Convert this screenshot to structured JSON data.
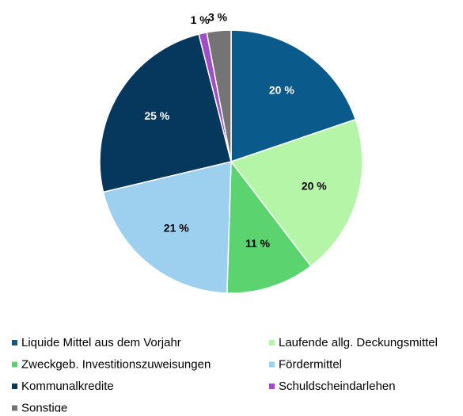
{
  "chart_data": {
    "type": "pie",
    "categories": [
      "Liquide Mittel aus dem Vorjahr",
      "Laufende allg. Deckungsmittel",
      "Zweckgeb. Investitionszuweisungen",
      "Fördermittel",
      "Kommunalkredite",
      "Schuldscheindarlehen",
      "Sonstige"
    ],
    "values": [
      20,
      20,
      11,
      21,
      25,
      1,
      3
    ],
    "value_labels": [
      "20 %",
      "20 %",
      "11 %",
      "21 %",
      "25 %",
      "1 %",
      "3 %"
    ],
    "colors": [
      "#0b5a8c",
      "#b5f5a8",
      "#5bd46f",
      "#9dd0ef",
      "#06375d",
      "#a24cc8",
      "#747474"
    ],
    "legend": "bottom"
  }
}
